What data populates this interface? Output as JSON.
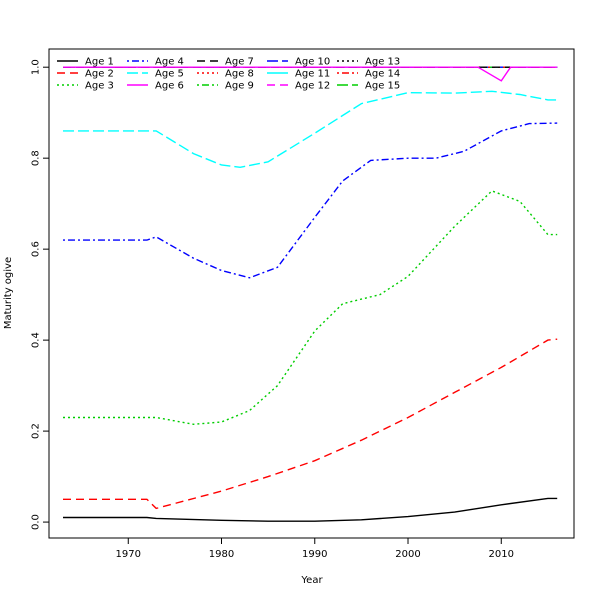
{
  "chart_data": {
    "type": "line",
    "title": "",
    "xlabel": "Year",
    "ylabel": "Maturity ogive",
    "xlim": [
      1961.5,
      2017.8
    ],
    "ylim": [
      -0.035,
      1.04
    ],
    "xticks": [
      1970,
      1980,
      1990,
      2000,
      2010
    ],
    "yticks": [
      "0.0",
      "0.2",
      "0.4",
      "0.6",
      "0.8",
      "1.0"
    ],
    "grid": false,
    "legend_position": "top-left",
    "series": [
      {
        "name": "Age 1",
        "color": "#000000",
        "dash": "solid",
        "x": [
          1963,
          1972,
          1973,
          1980,
          1985,
          1990,
          1995,
          2000,
          2005,
          2010,
          2015,
          2016
        ],
        "y": [
          0.01,
          0.01,
          0.008,
          0.004,
          0.002,
          0.002,
          0.005,
          0.012,
          0.022,
          0.038,
          0.052,
          0.052
        ]
      },
      {
        "name": "Age 2",
        "color": "#ff0000",
        "dash": "dashed",
        "x": [
          1963,
          1972,
          1973,
          1980,
          1985,
          1990,
          1995,
          2000,
          2005,
          2010,
          2015,
          2016
        ],
        "y": [
          0.05,
          0.05,
          0.03,
          0.068,
          0.1,
          0.135,
          0.18,
          0.23,
          0.285,
          0.34,
          0.4,
          0.402
        ]
      },
      {
        "name": "Age 3",
        "color": "#00cd00",
        "dash": "dotted",
        "x": [
          1963,
          1973,
          1977,
          1980,
          1983,
          1986,
          1990,
          1993,
          1997,
          2000,
          2005,
          2009,
          2012,
          2015,
          2016
        ],
        "y": [
          0.23,
          0.23,
          0.215,
          0.22,
          0.245,
          0.3,
          0.42,
          0.48,
          0.5,
          0.54,
          0.65,
          0.728,
          0.705,
          0.632,
          0.632
        ]
      },
      {
        "name": "Age 4",
        "color": "#0000ff",
        "dash": "dotdash",
        "x": [
          1963,
          1972,
          1973,
          1977,
          1980,
          1983,
          1986,
          1990,
          1993,
          1996,
          2000,
          2003,
          2006,
          2010,
          2013,
          2016
        ],
        "y": [
          0.62,
          0.62,
          0.627,
          0.58,
          0.553,
          0.537,
          0.56,
          0.67,
          0.75,
          0.795,
          0.8,
          0.8,
          0.815,
          0.86,
          0.876,
          0.877
        ]
      },
      {
        "name": "Age 5",
        "color": "#00ffff",
        "dash": "longdash",
        "x": [
          1963,
          1973,
          1977,
          1980,
          1982,
          1985,
          1990,
          1995,
          2000,
          2005,
          2009,
          2012,
          2015,
          2016
        ],
        "y": [
          0.86,
          0.86,
          0.81,
          0.785,
          0.78,
          0.792,
          0.855,
          0.92,
          0.944,
          0.943,
          0.947,
          0.94,
          0.928,
          0.928
        ]
      },
      {
        "name": "Age 6",
        "color": "#ff00ff",
        "dash": "solid",
        "x": [
          1963,
          2007.5,
          2010,
          2011,
          2016
        ],
        "y": [
          1,
          1,
          0.97,
          1,
          1
        ]
      },
      {
        "name": "Age 7",
        "color": "#000000",
        "dash": "dashed",
        "x": [
          1963,
          2016
        ],
        "y": [
          1,
          1
        ]
      },
      {
        "name": "Age 8",
        "color": "#ff0000",
        "dash": "dotted",
        "x": [
          1963,
          2016
        ],
        "y": [
          1,
          1
        ]
      },
      {
        "name": "Age 9",
        "color": "#00cd00",
        "dash": "dotdash",
        "x": [
          1963,
          2016
        ],
        "y": [
          1,
          1
        ]
      },
      {
        "name": "Age 10",
        "color": "#0000ff",
        "dash": "longdash",
        "x": [
          1963,
          2016
        ],
        "y": [
          1,
          1
        ]
      },
      {
        "name": "Age 11",
        "color": "#00ffff",
        "dash": "solid",
        "x": [
          1963,
          2016
        ],
        "y": [
          1,
          1
        ]
      },
      {
        "name": "Age 12",
        "color": "#ff00ff",
        "dash": "dashed",
        "x": [
          1963,
          2016
        ],
        "y": [
          1,
          1
        ]
      },
      {
        "name": "Age 13",
        "color": "#000000",
        "dash": "dotted",
        "x": [
          1963,
          2016
        ],
        "y": [
          1,
          1
        ]
      },
      {
        "name": "Age 14",
        "color": "#ff0000",
        "dash": "dotdash",
        "x": [
          1963,
          2016
        ],
        "y": [
          1,
          1
        ]
      },
      {
        "name": "Age 15",
        "color": "#00cd00",
        "dash": "longdash",
        "x": [
          1963,
          2016
        ],
        "y": [
          1,
          1
        ]
      }
    ]
  }
}
